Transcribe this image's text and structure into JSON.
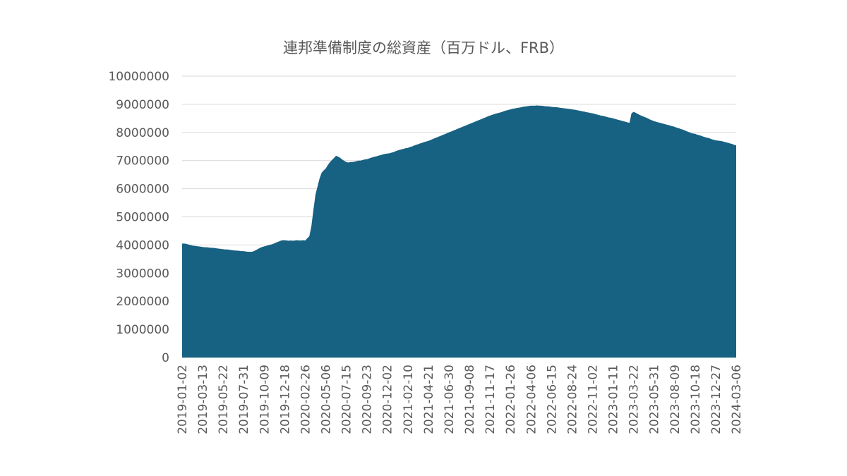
{
  "chart_data": {
    "type": "area",
    "title": "連邦準備制度の総資産（百万ドル、FRB）",
    "color": "#176182",
    "grid": true,
    "ylim": [
      0,
      10000000
    ],
    "yticks": [
      0,
      1000000,
      2000000,
      3000000,
      4000000,
      5000000,
      6000000,
      7000000,
      8000000,
      9000000,
      10000000
    ],
    "categories": [
      "2019-01-02",
      null,
      null,
      null,
      null,
      null,
      null,
      null,
      null,
      null,
      "2019-03-13",
      null,
      null,
      null,
      null,
      null,
      null,
      null,
      null,
      null,
      "2019-05-22",
      null,
      null,
      null,
      null,
      null,
      null,
      null,
      null,
      null,
      "2019-07-31",
      null,
      null,
      null,
      null,
      null,
      null,
      null,
      null,
      null,
      "2019-10-09",
      null,
      null,
      null,
      null,
      null,
      null,
      null,
      null,
      null,
      "2019-12-18",
      null,
      null,
      null,
      null,
      null,
      null,
      null,
      null,
      null,
      "2020-02-26",
      null,
      null,
      null,
      null,
      null,
      null,
      null,
      null,
      null,
      "2020-05-06",
      null,
      null,
      null,
      null,
      null,
      null,
      null,
      null,
      null,
      "2020-07-15",
      null,
      null,
      null,
      null,
      null,
      null,
      null,
      null,
      null,
      "2020-09-23",
      null,
      null,
      null,
      null,
      null,
      null,
      null,
      null,
      null,
      "2020-12-02",
      null,
      null,
      null,
      null,
      null,
      null,
      null,
      null,
      null,
      "2021-02-10",
      null,
      null,
      null,
      null,
      null,
      null,
      null,
      null,
      null,
      "2021-04-21",
      null,
      null,
      null,
      null,
      null,
      null,
      null,
      null,
      null,
      "2021-06-30",
      null,
      null,
      null,
      null,
      null,
      null,
      null,
      null,
      null,
      "2021-09-08",
      null,
      null,
      null,
      null,
      null,
      null,
      null,
      null,
      null,
      "2021-11-17",
      null,
      null,
      null,
      null,
      null,
      null,
      null,
      null,
      null,
      "2022-01-26",
      null,
      null,
      null,
      null,
      null,
      null,
      null,
      null,
      null,
      "2022-04-06",
      null,
      null,
      null,
      null,
      null,
      null,
      null,
      null,
      null,
      "2022-06-15",
      null,
      null,
      null,
      null,
      null,
      null,
      null,
      null,
      null,
      "2022-08-24",
      null,
      null,
      null,
      null,
      null,
      null,
      null,
      null,
      null,
      "2022-11-02",
      null,
      null,
      null,
      null,
      null,
      null,
      null,
      null,
      null,
      "2023-01-11",
      null,
      null,
      null,
      null,
      null,
      null,
      null,
      null,
      null,
      "2023-03-22",
      null,
      null,
      null,
      null,
      null,
      null,
      null,
      null,
      null,
      "2023-05-31",
      null,
      null,
      null,
      null,
      null,
      null,
      null,
      null,
      null,
      "2023-08-09",
      null,
      null,
      null,
      null,
      null,
      null,
      null,
      null,
      null,
      "2023-10-18",
      null,
      null,
      null,
      null,
      null,
      null,
      null,
      null,
      null,
      "2023-12-27",
      null,
      null,
      null,
      null,
      null,
      null,
      null,
      null,
      null,
      "2024-03-06"
    ],
    "values": [
      4050000,
      4050000,
      4040000,
      4020000,
      4000000,
      3980000,
      3970000,
      3960000,
      3950000,
      3940000,
      3930000,
      3920000,
      3920000,
      3910000,
      3900000,
      3900000,
      3890000,
      3880000,
      3870000,
      3860000,
      3850000,
      3840000,
      3840000,
      3830000,
      3820000,
      3810000,
      3800000,
      3800000,
      3790000,
      3780000,
      3780000,
      3770000,
      3760000,
      3760000,
      3760000,
      3780000,
      3820000,
      3860000,
      3900000,
      3930000,
      3950000,
      3970000,
      3990000,
      4010000,
      4030000,
      4060000,
      4090000,
      4120000,
      4150000,
      4170000,
      4170000,
      4160000,
      4150000,
      4160000,
      4150000,
      4160000,
      4170000,
      4160000,
      4160000,
      4170000,
      4160000,
      4240000,
      4310000,
      4670000,
      5250000,
      5800000,
      6080000,
      6370000,
      6570000,
      6650000,
      6720000,
      6840000,
      6940000,
      7020000,
      7090000,
      7170000,
      7140000,
      7100000,
      7040000,
      6990000,
      6950000,
      6930000,
      6950000,
      6950000,
      6960000,
      6980000,
      7000000,
      7000000,
      7020000,
      7040000,
      7050000,
      7070000,
      7100000,
      7120000,
      7140000,
      7160000,
      7180000,
      7200000,
      7220000,
      7240000,
      7250000,
      7260000,
      7280000,
      7300000,
      7330000,
      7360000,
      7380000,
      7400000,
      7420000,
      7440000,
      7450000,
      7480000,
      7500000,
      7530000,
      7560000,
      7580000,
      7610000,
      7630000,
      7660000,
      7680000,
      7700000,
      7730000,
      7760000,
      7790000,
      7820000,
      7850000,
      7880000,
      7910000,
      7940000,
      7970000,
      8000000,
      8030000,
      8060000,
      8090000,
      8120000,
      8150000,
      8180000,
      8210000,
      8240000,
      8270000,
      8300000,
      8330000,
      8360000,
      8390000,
      8420000,
      8450000,
      8480000,
      8510000,
      8540000,
      8570000,
      8600000,
      8620000,
      8650000,
      8670000,
      8690000,
      8710000,
      8730000,
      8760000,
      8780000,
      8800000,
      8820000,
      8840000,
      8850000,
      8870000,
      8880000,
      8890000,
      8910000,
      8920000,
      8930000,
      8940000,
      8950000,
      8950000,
      8950000,
      8960000,
      8950000,
      8950000,
      8940000,
      8930000,
      8930000,
      8920000,
      8910000,
      8900000,
      8900000,
      8890000,
      8880000,
      8870000,
      8860000,
      8850000,
      8840000,
      8830000,
      8820000,
      8810000,
      8800000,
      8780000,
      8770000,
      8750000,
      8740000,
      8720000,
      8710000,
      8690000,
      8680000,
      8660000,
      8640000,
      8620000,
      8600000,
      8590000,
      8570000,
      8550000,
      8530000,
      8520000,
      8500000,
      8480000,
      8460000,
      8440000,
      8420000,
      8400000,
      8380000,
      8360000,
      8340000,
      8680000,
      8730000,
      8700000,
      8660000,
      8620000,
      8590000,
      8560000,
      8530000,
      8500000,
      8460000,
      8430000,
      8400000,
      8380000,
      8360000,
      8340000,
      8320000,
      8300000,
      8280000,
      8260000,
      8240000,
      8220000,
      8200000,
      8170000,
      8150000,
      8120000,
      8100000,
      8070000,
      8040000,
      8010000,
      7980000,
      7960000,
      7950000,
      7920000,
      7900000,
      7880000,
      7850000,
      7830000,
      7810000,
      7790000,
      7760000,
      7740000,
      7720000,
      7710000,
      7700000,
      7690000,
      7670000,
      7650000,
      7630000,
      7610000,
      7590000,
      7560000,
      7540000
    ]
  }
}
